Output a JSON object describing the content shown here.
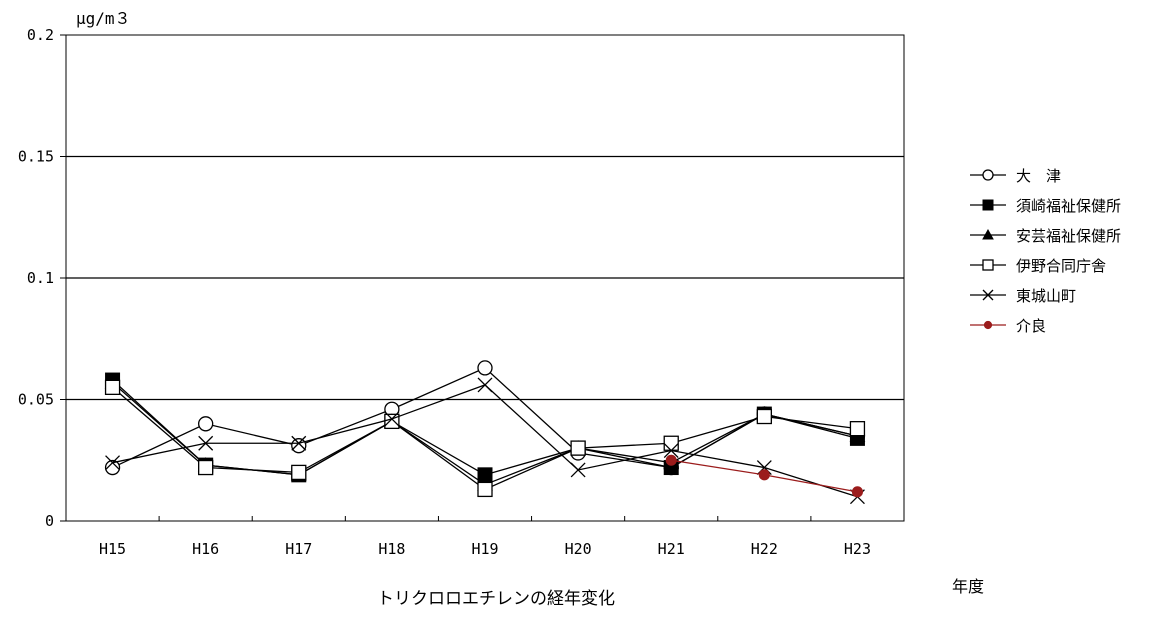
{
  "chart_data": {
    "type": "line",
    "title": "トリクロロエチレンの経年変化",
    "ylabel": "μg/m３",
    "xlabel": "年度",
    "ylim": [
      0,
      0.2
    ],
    "yticks": [
      "0",
      "0.05",
      "0.1",
      "0.15",
      "0.2"
    ],
    "ytick_values": [
      0,
      0.05,
      0.1,
      0.15,
      0.2
    ],
    "categories": [
      "H15",
      "H16",
      "H17",
      "H18",
      "H19",
      "H20",
      "H21",
      "H22",
      "H23"
    ],
    "grid": "horizontal",
    "legend_position": "right",
    "series": [
      {
        "name": "大　津",
        "marker": "circle-open",
        "color": "#000000",
        "values": [
          0.022,
          0.04,
          0.031,
          0.046,
          0.063,
          0.028,
          0.022,
          0.044,
          0.035
        ]
      },
      {
        "name": "須崎福祉保健所",
        "marker": "square-filled",
        "color": "#000000",
        "values": [
          0.058,
          0.023,
          0.019,
          0.041,
          0.019,
          0.03,
          0.022,
          0.044,
          0.034
        ]
      },
      {
        "name": "安芸福祉保健所",
        "marker": "triangle-filled",
        "color": "#000000",
        "values": [
          0.057,
          0.023,
          0.019,
          0.041,
          0.015,
          0.03,
          0.024,
          0.044,
          0.035
        ]
      },
      {
        "name": "伊野合同庁舎",
        "marker": "square-open",
        "color": "#000000",
        "values": [
          0.055,
          0.022,
          0.02,
          0.041,
          0.013,
          0.03,
          0.032,
          0.043,
          0.038
        ]
      },
      {
        "name": "東城山町",
        "marker": "x",
        "color": "#000000",
        "values": [
          0.024,
          0.032,
          0.032,
          0.042,
          0.056,
          0.021,
          0.029,
          0.022,
          0.01
        ]
      },
      {
        "name": "介良",
        "marker": "circle-filled",
        "color": "#9b1c1c",
        "values": [
          null,
          null,
          null,
          null,
          null,
          null,
          0.025,
          0.019,
          0.012
        ]
      }
    ]
  }
}
